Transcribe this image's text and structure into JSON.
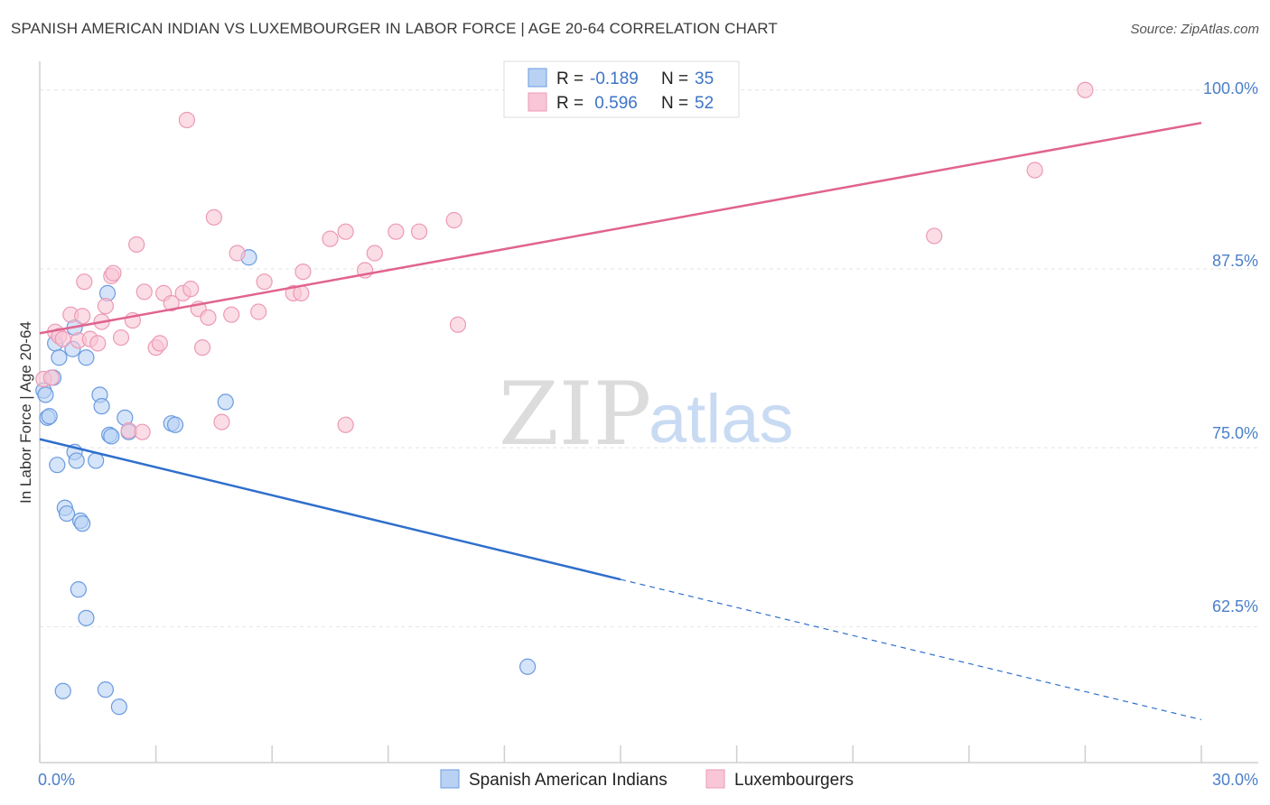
{
  "header": {
    "title": "SPANISH AMERICAN INDIAN VS LUXEMBOURGER IN LABOR FORCE | AGE 20-64 CORRELATION CHART",
    "source": "Source: ZipAtlas.com"
  },
  "watermark": {
    "zip": "ZIP",
    "atlas": "atlas"
  },
  "colors": {
    "blue_fill": "#b9d2f3",
    "blue_stroke": "#6a9be0",
    "blue_line": "#2f6fcc",
    "pink_fill": "#f8c6d6",
    "pink_stroke": "#ec9ab5",
    "pink_line": "#e0638f",
    "grid": "#e4e4e4",
    "tick_text": "#4a7fc8"
  },
  "chart_data": {
    "type": "scatter",
    "title": "SPANISH AMERICAN INDIAN VS LUXEMBOURGER IN LABOR FORCE | AGE 20-64 CORRELATION CHART",
    "xlabel": "",
    "ylabel": "In Labor Force | Age 20-64",
    "xlim": [
      0,
      30
    ],
    "ylim": [
      53,
      102
    ],
    "x_tick_labels": [
      "0.0%",
      "30.0%"
    ],
    "y_ticks": [
      62.5,
      75.0,
      87.5,
      100.0
    ],
    "y_tick_labels": [
      "62.5%",
      "75.0%",
      "87.5%",
      "100.0%"
    ],
    "grid": true,
    "legend_position": "top-center",
    "legend": [
      {
        "r_label": "R =",
        "r_value": "-0.189",
        "n_label": "N =",
        "n_value": "35"
      },
      {
        "r_label": "R =",
        "r_value": " 0.596",
        "n_label": "N =",
        "n_value": "52"
      }
    ],
    "bottom_legend": [
      "Spanish American Indians",
      "Luxembourgers"
    ],
    "series": [
      {
        "name": "Spanish American Indians",
        "trend": {
          "x0": 0,
          "y0": 75.6,
          "x1": 15,
          "y1": 65.8,
          "dash_x1": 30,
          "dash_y1": 56.0
        },
        "points": [
          [
            0.1,
            79.0
          ],
          [
            0.15,
            78.7
          ],
          [
            0.2,
            77.1
          ],
          [
            0.25,
            77.2
          ],
          [
            0.35,
            79.9
          ],
          [
            0.4,
            82.3
          ],
          [
            0.45,
            73.8
          ],
          [
            0.5,
            81.3
          ],
          [
            0.6,
            58.0
          ],
          [
            0.65,
            70.8
          ],
          [
            0.7,
            70.4
          ],
          [
            0.85,
            81.9
          ],
          [
            0.9,
            83.4
          ],
          [
            0.9,
            74.7
          ],
          [
            0.95,
            74.1
          ],
          [
            1.0,
            65.1
          ],
          [
            1.05,
            69.9
          ],
          [
            1.1,
            69.7
          ],
          [
            1.2,
            63.1
          ],
          [
            1.2,
            81.3
          ],
          [
            1.45,
            74.1
          ],
          [
            1.55,
            78.7
          ],
          [
            1.6,
            77.9
          ],
          [
            1.7,
            58.1
          ],
          [
            1.75,
            85.8
          ],
          [
            1.8,
            75.9
          ],
          [
            1.85,
            75.8
          ],
          [
            2.05,
            56.9
          ],
          [
            2.2,
            77.1
          ],
          [
            2.3,
            76.1
          ],
          [
            3.4,
            76.7
          ],
          [
            3.5,
            76.6
          ],
          [
            4.8,
            78.2
          ],
          [
            5.4,
            88.3
          ],
          [
            12.6,
            59.7
          ]
        ]
      },
      {
        "name": "Luxembourgers",
        "trend": {
          "x0": 0,
          "y0": 83.0,
          "x1": 30,
          "y1": 97.7
        },
        "points": [
          [
            0.1,
            79.8
          ],
          [
            0.3,
            79.9
          ],
          [
            0.4,
            83.1
          ],
          [
            0.5,
            82.8
          ],
          [
            0.6,
            82.6
          ],
          [
            0.8,
            84.3
          ],
          [
            1.0,
            82.5
          ],
          [
            1.1,
            84.2
          ],
          [
            1.15,
            86.6
          ],
          [
            1.3,
            82.6
          ],
          [
            1.5,
            82.3
          ],
          [
            1.6,
            83.8
          ],
          [
            1.7,
            84.9
          ],
          [
            1.85,
            87.0
          ],
          [
            1.9,
            87.2
          ],
          [
            2.1,
            82.7
          ],
          [
            2.3,
            76.2
          ],
          [
            2.4,
            83.9
          ],
          [
            2.5,
            89.2
          ],
          [
            2.65,
            76.1
          ],
          [
            2.7,
            85.9
          ],
          [
            3.0,
            82.0
          ],
          [
            3.1,
            82.3
          ],
          [
            3.2,
            85.8
          ],
          [
            3.4,
            85.1
          ],
          [
            3.7,
            85.8
          ],
          [
            3.8,
            97.9
          ],
          [
            3.9,
            86.1
          ],
          [
            4.1,
            84.7
          ],
          [
            4.2,
            82.0
          ],
          [
            4.35,
            84.1
          ],
          [
            4.5,
            91.1
          ],
          [
            4.7,
            76.8
          ],
          [
            4.95,
            84.3
          ],
          [
            5.1,
            88.6
          ],
          [
            5.65,
            84.5
          ],
          [
            5.8,
            86.6
          ],
          [
            6.55,
            85.8
          ],
          [
            6.75,
            85.8
          ],
          [
            6.8,
            87.3
          ],
          [
            7.5,
            89.6
          ],
          [
            7.9,
            90.1
          ],
          [
            7.9,
            76.6
          ],
          [
            8.4,
            87.4
          ],
          [
            8.65,
            88.6
          ],
          [
            9.2,
            90.1
          ],
          [
            9.8,
            90.1
          ],
          [
            10.7,
            90.9
          ],
          [
            10.8,
            83.6
          ],
          [
            23.1,
            89.8
          ],
          [
            25.7,
            94.4
          ],
          [
            27.0,
            100.0
          ]
        ]
      }
    ]
  }
}
